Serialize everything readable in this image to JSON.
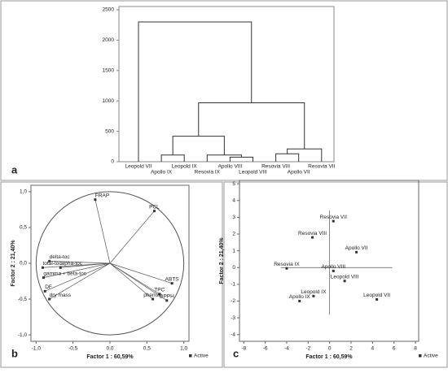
{
  "chart_data": [
    {
      "type": "dendrogram",
      "label": "a",
      "leaves": [
        "Leopold VII",
        "Apollo IX",
        "Leopold IX",
        "Resovia IX",
        "Apollo VIII",
        "Leopold VIII",
        "Resovia VIII",
        "Apollo VII",
        "Resovia VII"
      ],
      "merges": [
        {
          "left": 4,
          "right": 5,
          "height": 75
        },
        {
          "left": 1,
          "right": 2,
          "height": 110
        },
        {
          "left": 3,
          "right": 9,
          "height": 110
        },
        {
          "left": 6,
          "right": 7,
          "height": 130
        },
        {
          "left": 12,
          "right": 8,
          "height": 210
        },
        {
          "left": 10,
          "right": 11,
          "height": 420
        },
        {
          "left": 14,
          "right": 13,
          "height": 970
        },
        {
          "left": 0,
          "right": 15,
          "height": 2300
        }
      ],
      "ylim": [
        0,
        2500
      ],
      "yticks": [
        0,
        500,
        1000,
        1500,
        2000,
        2500
      ],
      "color": "#333333"
    },
    {
      "type": "correlation-circle",
      "label": "b",
      "x_label": "Factor 1 : 60,59%",
      "y_label": "Factor 2 : 21,40%",
      "series": [
        {
          "name": "Active",
          "color": "#333333",
          "labels": [
            "FRAP",
            "PCL",
            "ABTS",
            "TPC",
            "phenols",
            "DPPH",
            "delta-toc",
            "total-toc",
            "alpha-toc",
            "gamma + beta-toc",
            "DF",
            "dry mass"
          ],
          "x": [
            -0.2,
            0.6,
            0.84,
            0.67,
            0.58,
            0.77,
            -0.82,
            -0.91,
            -0.67,
            -0.9,
            -0.88,
            -0.82
          ],
          "values": [
            0.89,
            0.73,
            -0.28,
            -0.43,
            -0.5,
            -0.52,
            0.03,
            -0.06,
            -0.06,
            -0.2,
            -0.39,
            -0.5
          ]
        }
      ],
      "xlim": [
        -1.07,
        1.07
      ],
      "ylim": [
        -1.09,
        1.09
      ],
      "xticks": [
        {
          "value": -1,
          "label": "-1,0"
        },
        {
          "value": -0.5,
          "label": "-0,5"
        },
        {
          "value": 0,
          "label": "0,0"
        },
        {
          "value": 0.5,
          "label": "0,5"
        },
        {
          "value": 1,
          "label": "1,0"
        }
      ],
      "yticks": [
        {
          "value": -1,
          "label": "-1,0"
        },
        {
          "value": -0.5,
          "label": "-0,5"
        },
        {
          "value": 0,
          "label": "0,0"
        },
        {
          "value": 0.5,
          "label": "0,5"
        },
        {
          "value": 1,
          "label": "1,0"
        }
      ]
    },
    {
      "type": "scatter",
      "label": "c",
      "x_label": "Factor 1 : 60,59%",
      "y_label": "Factor 2 : 21,40%",
      "series": [
        {
          "name": "Active",
          "color": "#333333",
          "labels": [
            "Resovia VII",
            "Resovia VIII",
            "Apollo VII",
            "Resovia IX",
            "Apollo VIII",
            "Leopold VIII",
            "Leopold IX",
            "Apollo IX",
            "Leopold VII"
          ],
          "x": [
            0.35,
            -1.6,
            2.5,
            -4.0,
            0.35,
            1.4,
            -1.5,
            -2.8,
            4.4
          ],
          "values": [
            2.77,
            1.8,
            0.92,
            -0.05,
            -0.2,
            -0.8,
            -1.7,
            -2.0,
            -1.9
          ]
        }
      ],
      "xlim": [
        -8.4,
        8.3
      ],
      "ylim": [
        -4.4,
        5.2
      ],
      "xticks": [
        -8,
        -6,
        -4,
        -2,
        0,
        2,
        4,
        6,
        8
      ],
      "yticks": [
        -4,
        -3,
        -2,
        -1,
        0,
        1,
        2,
        3,
        4,
        5
      ]
    }
  ]
}
